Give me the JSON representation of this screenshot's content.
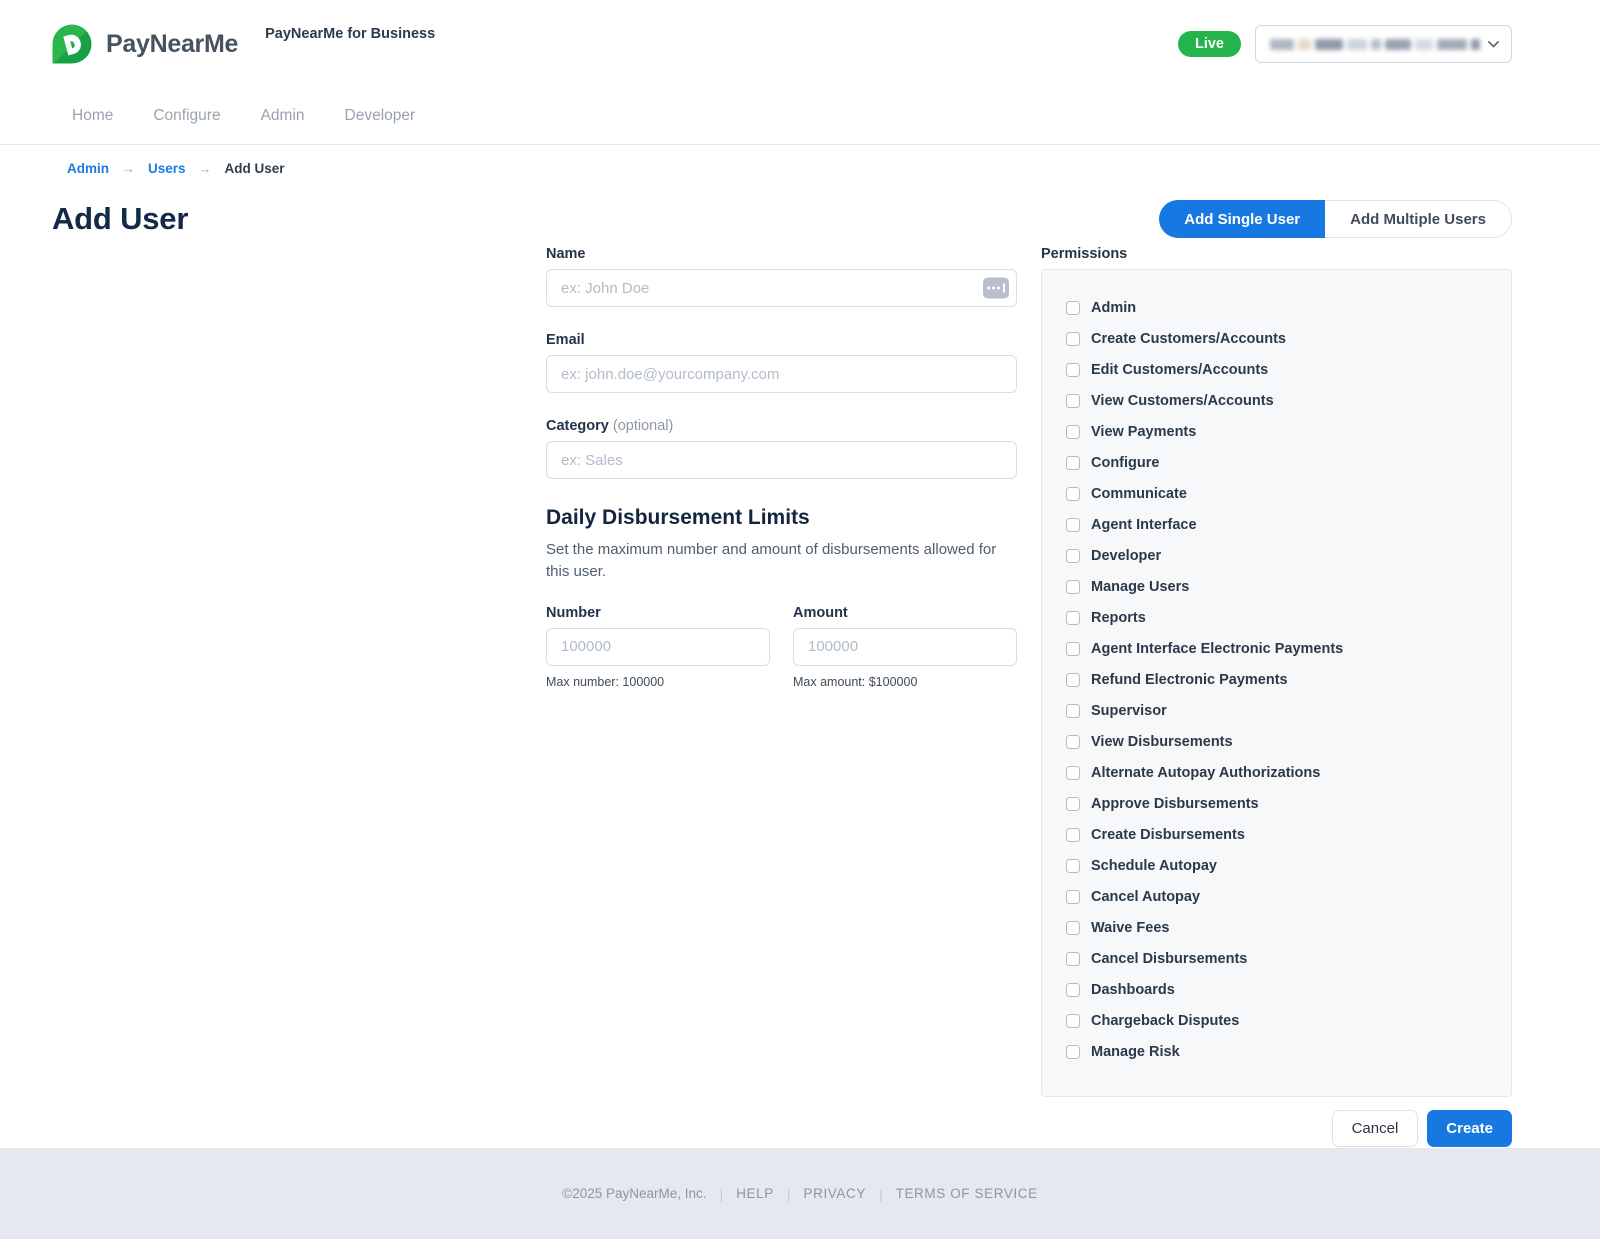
{
  "header": {
    "brand": "PayNearMe",
    "product_title": "PayNearMe for Business",
    "live_badge": "Live",
    "account_selector": {
      "redacted": true
    }
  },
  "nav": {
    "items": [
      {
        "label": "Home"
      },
      {
        "label": "Configure"
      },
      {
        "label": "Admin"
      },
      {
        "label": "Developer"
      }
    ]
  },
  "breadcrumb": {
    "separator": "→",
    "items": [
      {
        "label": "Admin",
        "link": true
      },
      {
        "label": "Users",
        "link": true
      },
      {
        "label": "Add User",
        "link": false
      }
    ]
  },
  "page": {
    "title": "Add User"
  },
  "view_toggle": {
    "single_label": "Add Single User",
    "multiple_label": "Add Multiple Users",
    "active": "single"
  },
  "form": {
    "name": {
      "label": "Name",
      "placeholder": "ex: John Doe",
      "value": ""
    },
    "email": {
      "label": "Email",
      "placeholder": "ex: john.doe@yourcompany.com",
      "value": ""
    },
    "category": {
      "label": "Category",
      "optional_note": "(optional)",
      "placeholder": "ex: Sales",
      "value": ""
    },
    "limits": {
      "heading": "Daily Disbursement Limits",
      "description": "Set the maximum number and amount of disbursements allowed for this user.",
      "number": {
        "label": "Number",
        "placeholder": "100000",
        "helper": "Max number: 100000",
        "value": ""
      },
      "amount": {
        "label": "Amount",
        "placeholder": "100000",
        "helper": "Max amount: $100000",
        "value": ""
      }
    }
  },
  "permissions": {
    "label": "Permissions",
    "items": [
      {
        "label": "Admin",
        "checked": false
      },
      {
        "label": "Create Customers/Accounts",
        "checked": false
      },
      {
        "label": "Edit Customers/Accounts",
        "checked": false
      },
      {
        "label": "View Customers/Accounts",
        "checked": false
      },
      {
        "label": "View Payments",
        "checked": false
      },
      {
        "label": "Configure",
        "checked": false
      },
      {
        "label": "Communicate",
        "checked": false
      },
      {
        "label": "Agent Interface",
        "checked": false
      },
      {
        "label": "Developer",
        "checked": false
      },
      {
        "label": "Manage Users",
        "checked": false
      },
      {
        "label": "Reports",
        "checked": false
      },
      {
        "label": "Agent Interface Electronic Payments",
        "checked": false
      },
      {
        "label": "Refund Electronic Payments",
        "checked": false
      },
      {
        "label": "Supervisor",
        "checked": false
      },
      {
        "label": "View Disbursements",
        "checked": false
      },
      {
        "label": "Alternate Autopay Authorizations",
        "checked": false
      },
      {
        "label": "Approve Disbursements",
        "checked": false
      },
      {
        "label": "Create Disbursements",
        "checked": false
      },
      {
        "label": "Schedule Autopay",
        "checked": false
      },
      {
        "label": "Cancel Autopay",
        "checked": false
      },
      {
        "label": "Waive Fees",
        "checked": false
      },
      {
        "label": "Cancel Disbursements",
        "checked": false
      },
      {
        "label": "Dashboards",
        "checked": false
      },
      {
        "label": "Chargeback Disputes",
        "checked": false
      },
      {
        "label": "Manage Risk",
        "checked": false
      }
    ]
  },
  "actions": {
    "cancel_label": "Cancel",
    "create_label": "Create"
  },
  "footer": {
    "copyright": "©2025 PayNearMe, Inc.",
    "separator": "|",
    "links": [
      "HELP",
      "PRIVACY",
      "TERMS OF SERVICE"
    ]
  },
  "colors": {
    "accent_blue": "#1678e0",
    "brand_green": "#25b34b",
    "brand_green_dark": "#18a046",
    "navy_heading": "#122a47",
    "link_blue": "#1a7ce2",
    "footer_bg": "#e5e9ef"
  }
}
